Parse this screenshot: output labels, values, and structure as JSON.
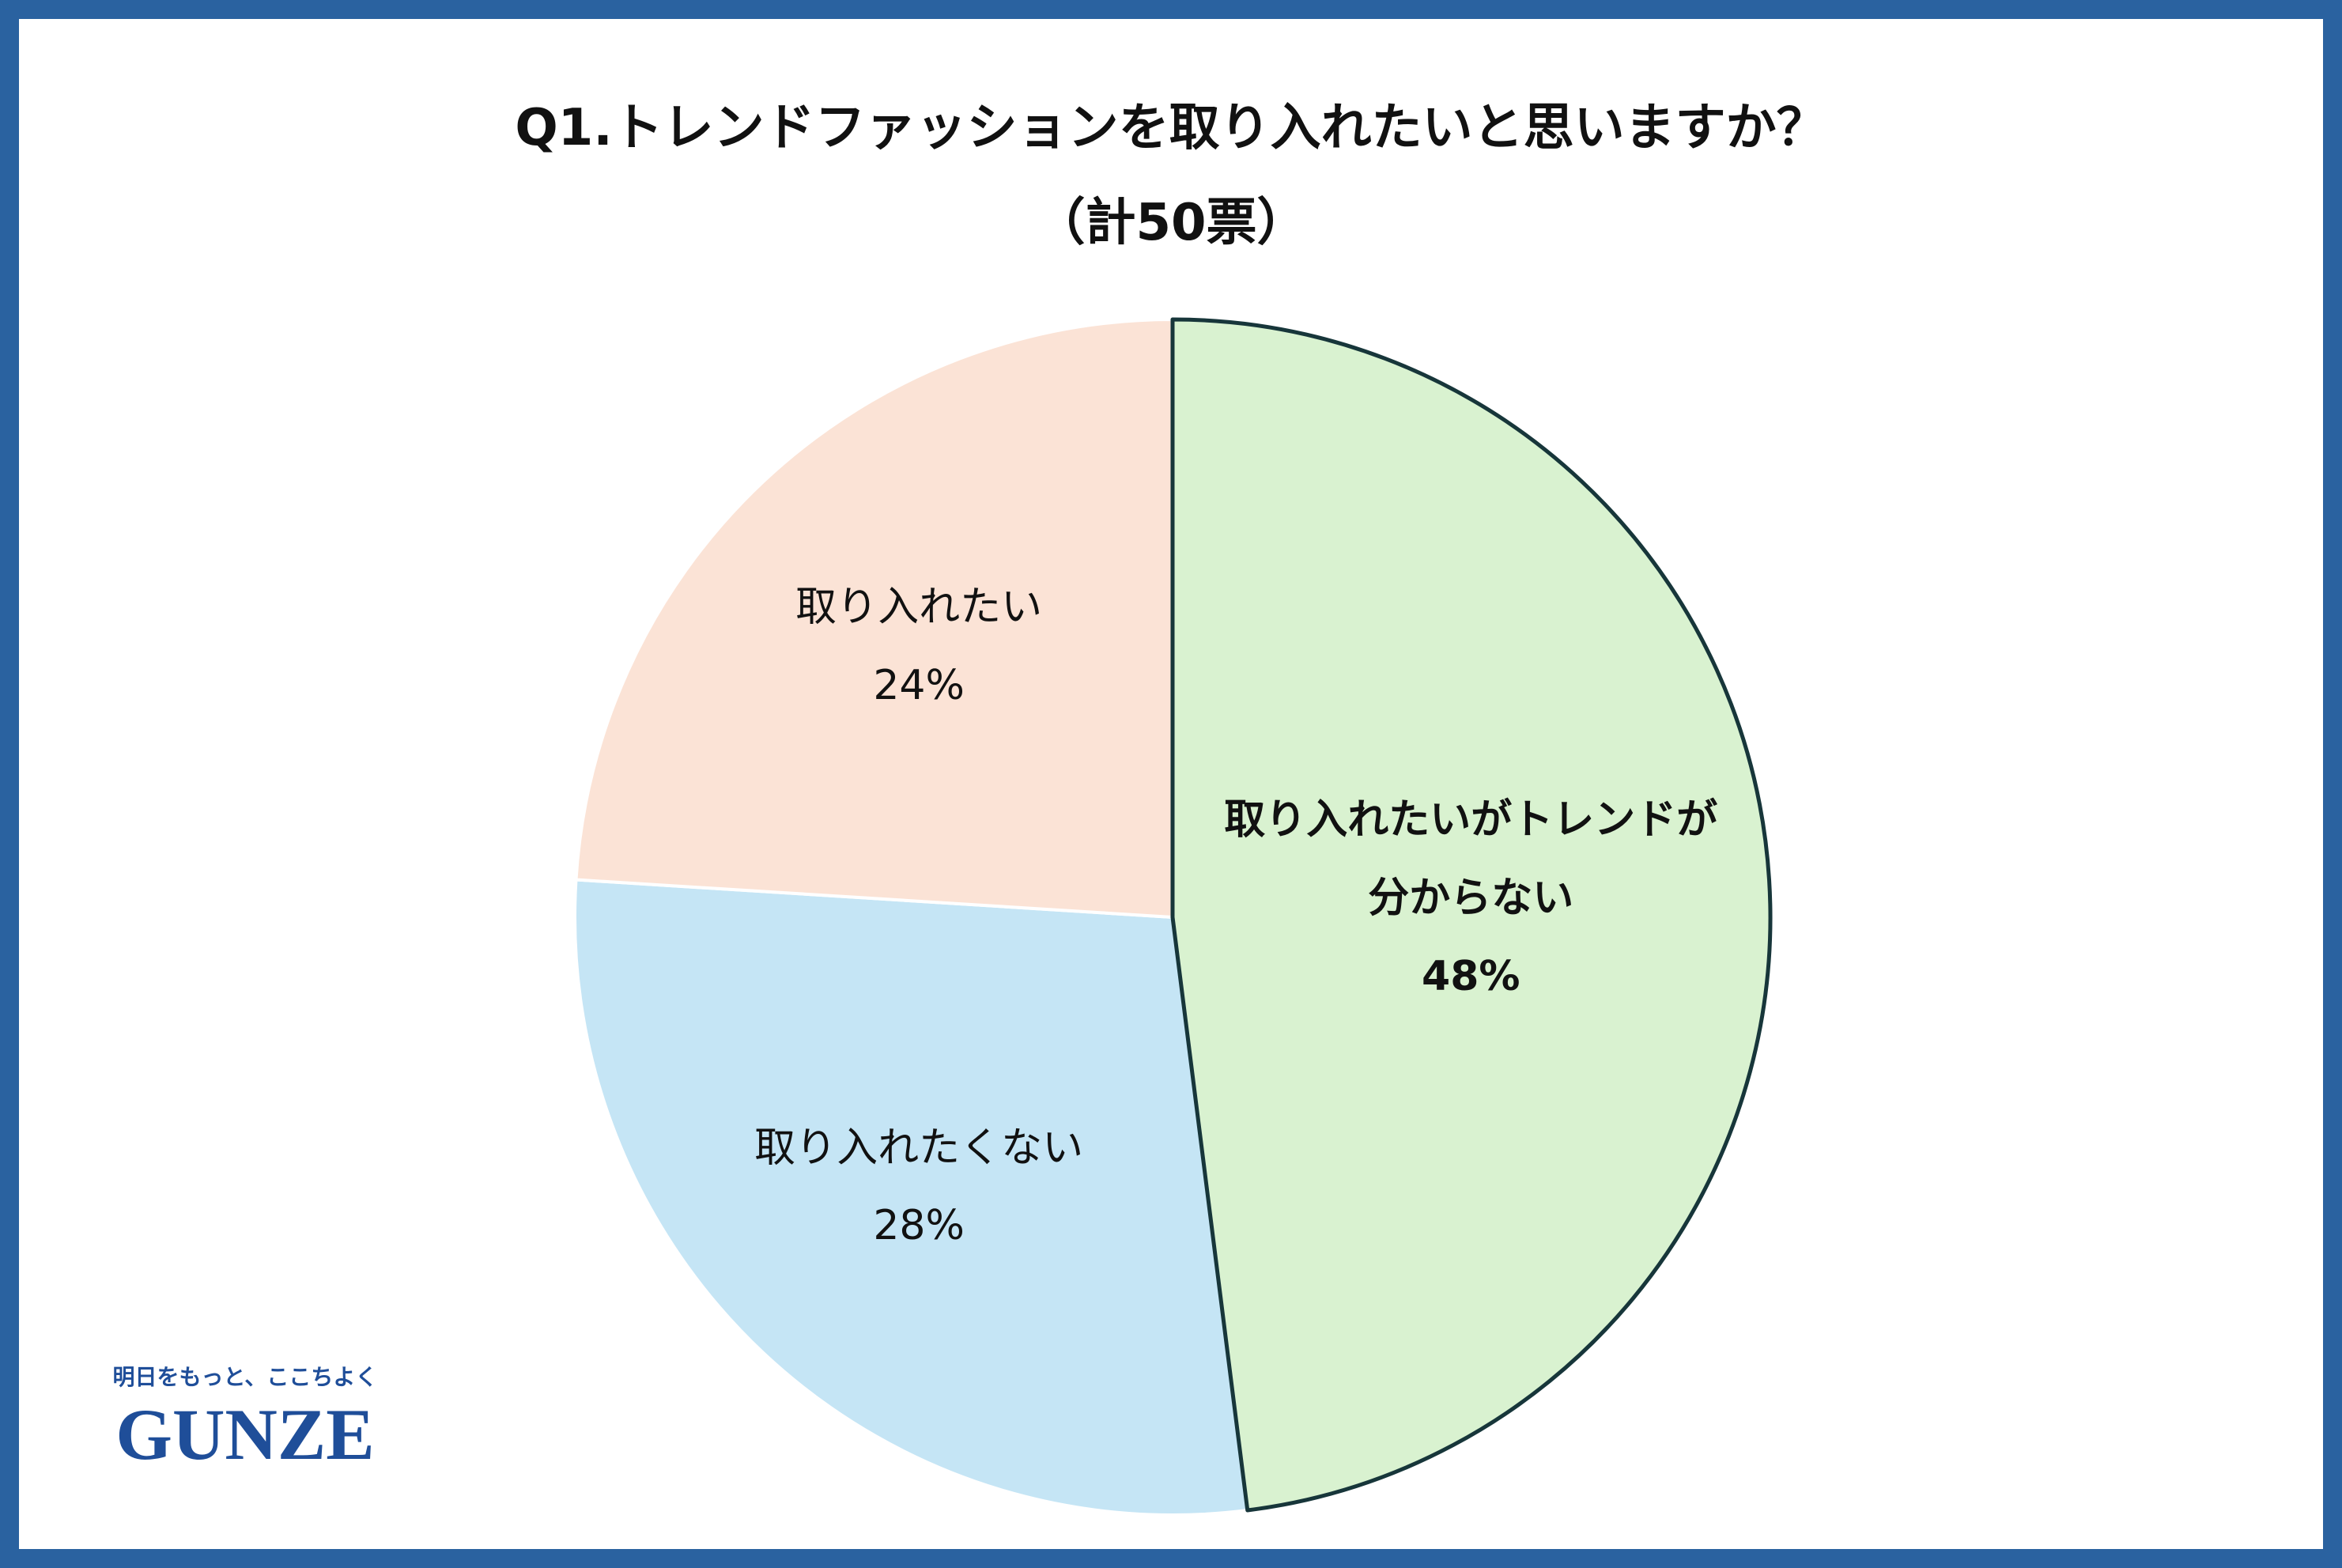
{
  "chart_data": {
    "type": "pie",
    "title": "Q1.トレンドファッションを取り入れたいと思いますか？",
    "subtitle": "（計50票）",
    "categories": [
      "取り入れたいがトレンドが分からない",
      "取り入れたくない",
      "取り入れたい"
    ],
    "values": [
      48,
      28,
      24
    ],
    "value_labels": [
      "48%",
      "28%",
      "24%"
    ],
    "colors": [
      "#d9f2d0",
      "#c5e5f5",
      "#fbe3d6"
    ]
  },
  "logo": {
    "tagline": "明日をもっと、ここちよく",
    "name": "GUNZE"
  }
}
